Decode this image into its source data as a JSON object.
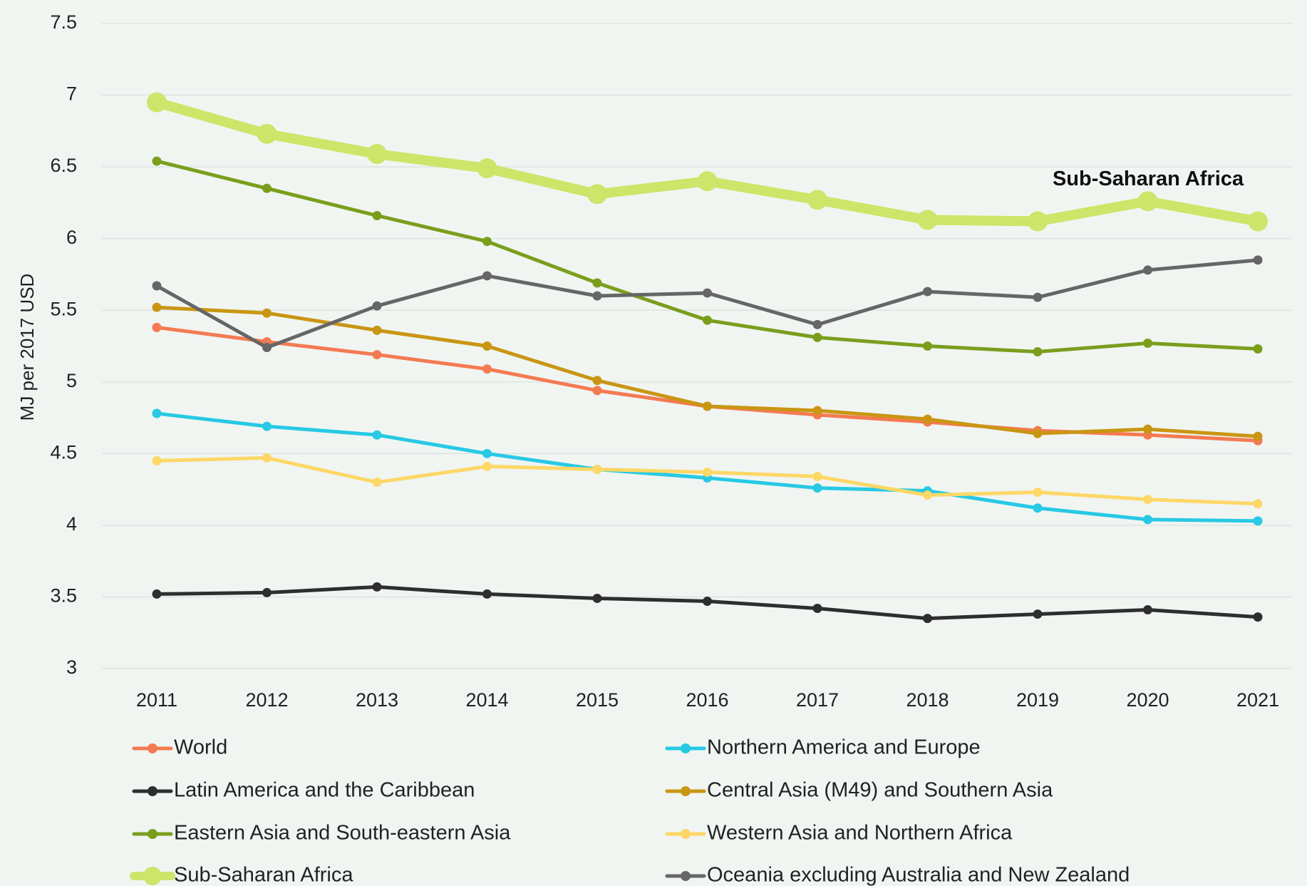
{
  "chart_data": {
    "type": "line",
    "title": "",
    "xlabel": "",
    "ylabel": "MJ per 2017 USD",
    "ylim": [
      3,
      7.5
    ],
    "yticks": [
      "7.5",
      "7",
      "6.5",
      "6",
      "5.5",
      "5",
      "4.5",
      "4",
      "3.5",
      "3"
    ],
    "x": [
      "2011",
      "2012",
      "2013",
      "2014",
      "2015",
      "2016",
      "2017",
      "2018",
      "2019",
      "2020",
      "2021"
    ],
    "grid": true,
    "legend": "bottom",
    "annotation": {
      "text": "Sub-Saharan Africa",
      "x": "2020",
      "y": 6.4
    },
    "series": [
      {
        "name": "World",
        "color": "#f47a52",
        "values": [
          5.38,
          5.28,
          5.19,
          5.09,
          4.94,
          4.83,
          4.77,
          4.72,
          4.66,
          4.63,
          4.59
        ]
      },
      {
        "name": "Northern America  and Europe",
        "color": "#27c9e4",
        "values": [
          4.78,
          4.69,
          4.63,
          4.5,
          4.39,
          4.33,
          4.26,
          4.24,
          4.12,
          4.04,
          4.03
        ]
      },
      {
        "name": "Latin America and the Caribbean",
        "color": "#2e2e2e",
        "values": [
          3.52,
          3.53,
          3.57,
          3.52,
          3.49,
          3.47,
          3.42,
          3.35,
          3.38,
          3.41,
          3.36
        ]
      },
      {
        "name": "Central Asia (M49) and Southern Asia",
        "color": "#c99613",
        "values": [
          5.52,
          5.48,
          5.36,
          5.25,
          5.01,
          4.83,
          4.8,
          4.74,
          4.64,
          4.67,
          4.62
        ]
      },
      {
        "name": "Eastern Asia and South-eastern Asia",
        "color": "#7a9e1c",
        "values": [
          6.54,
          6.35,
          6.16,
          5.98,
          5.69,
          5.43,
          5.31,
          5.25,
          5.21,
          5.27,
          5.23
        ]
      },
      {
        "name": "Western Asia and Northern Africa",
        "color": "#fed766",
        "values": [
          4.45,
          4.47,
          4.3,
          4.41,
          4.39,
          4.37,
          4.34,
          4.21,
          4.23,
          4.18,
          4.15
        ]
      },
      {
        "name": "Sub-Saharan Africa",
        "color": "#cde569",
        "emphasis": true,
        "values": [
          6.95,
          6.73,
          6.59,
          6.49,
          6.31,
          6.4,
          6.27,
          6.13,
          6.12,
          6.26,
          6.12
        ]
      },
      {
        "name": "Oceania excluding Australia and New Zealand",
        "color": "#666666",
        "values": [
          5.67,
          5.24,
          5.53,
          5.74,
          5.6,
          5.62,
          5.4,
          5.63,
          5.59,
          5.78,
          5.85
        ]
      }
    ]
  }
}
